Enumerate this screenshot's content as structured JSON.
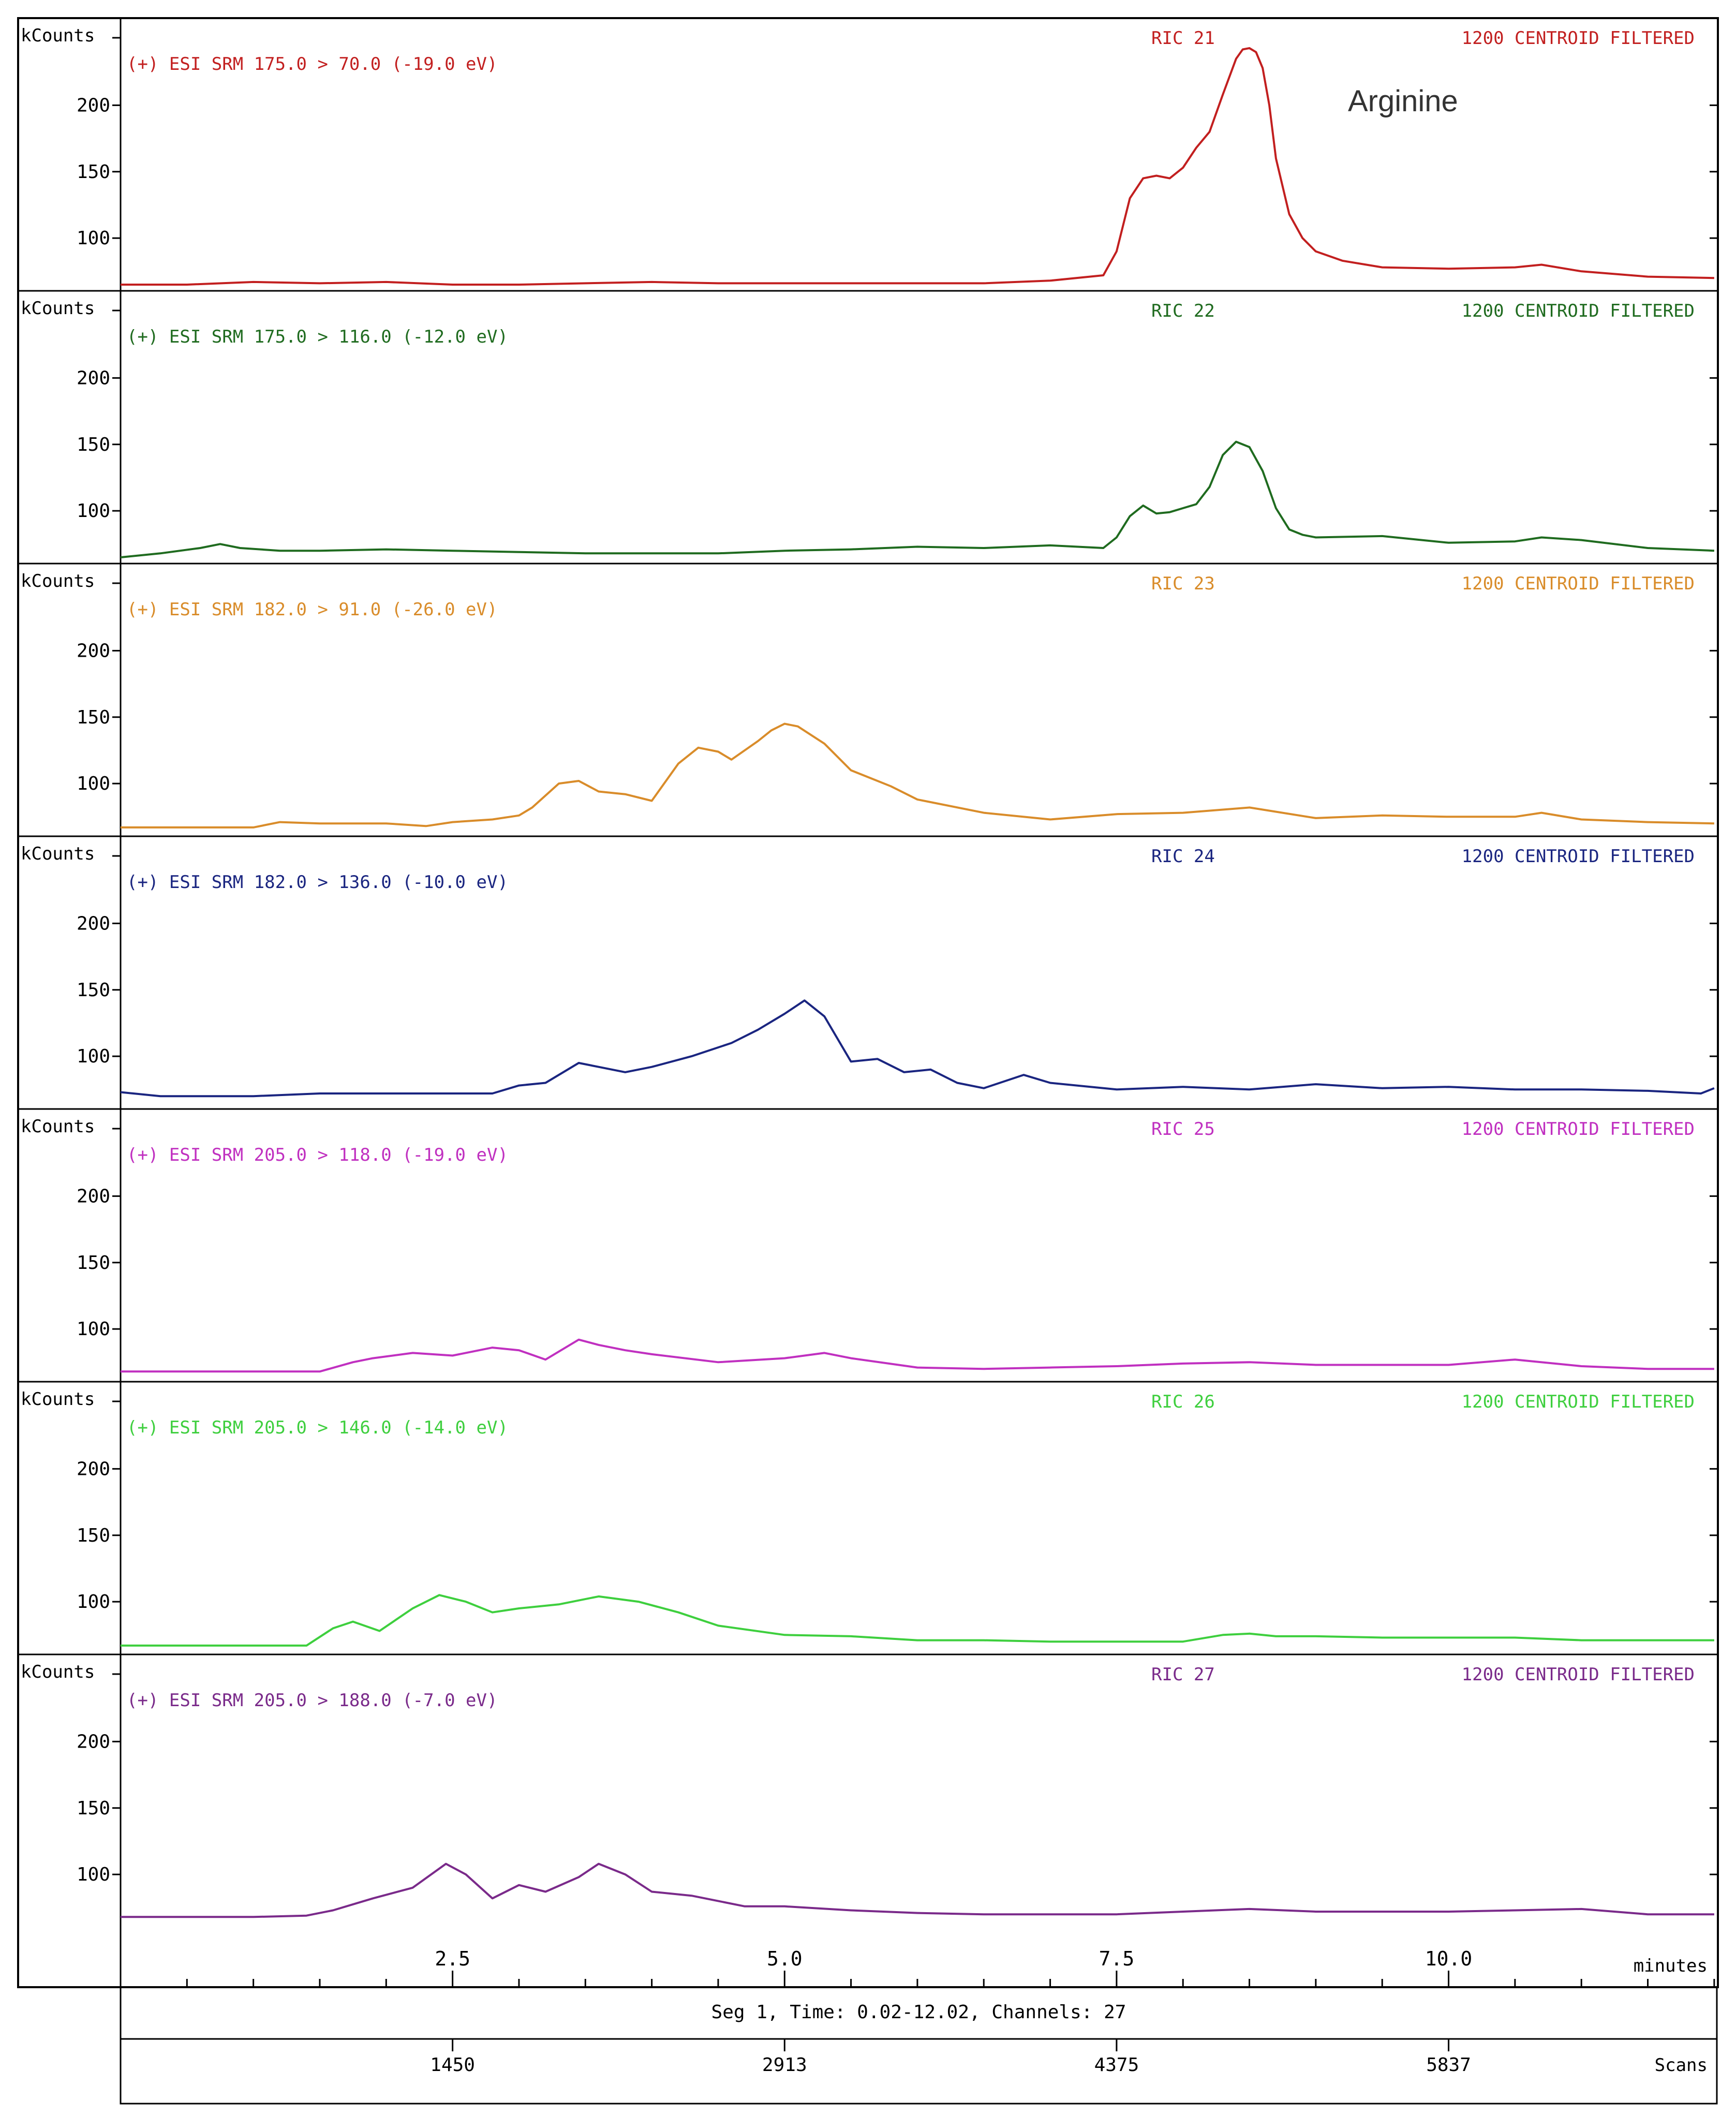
{
  "chart_data": [
    {
      "type": "line",
      "ylabel": "kCounts",
      "header_left": "(+) ESI SRM 175.0 > 70.0 (-19.0 eV)",
      "header_mid": "RIC 21",
      "header_right": "1200 CENTROID FILTERED",
      "annotation": "Arginine",
      "color": "#c21f1f",
      "ylim": [
        65,
        250
      ],
      "yticks": [
        100,
        150,
        200
      ],
      "x": [
        0.0,
        0.5,
        1.0,
        1.5,
        2.0,
        2.5,
        3.0,
        3.5,
        4.0,
        4.5,
        5.0,
        5.5,
        6.0,
        6.5,
        7.0,
        7.4,
        7.5,
        7.6,
        7.7,
        7.8,
        7.9,
        8.0,
        8.1,
        8.2,
        8.3,
        8.4,
        8.45,
        8.5,
        8.55,
        8.6,
        8.65,
        8.7,
        8.8,
        8.9,
        9.0,
        9.2,
        9.5,
        10.0,
        10.5,
        10.7,
        11.0,
        11.5,
        12.0
      ],
      "y": [
        65,
        65,
        67,
        66,
        67,
        65,
        65,
        66,
        67,
        66,
        66,
        66,
        66,
        66,
        68,
        72,
        90,
        130,
        145,
        147,
        145,
        153,
        168,
        180,
        208,
        235,
        242,
        243,
        240,
        228,
        200,
        160,
        118,
        100,
        90,
        83,
        78,
        77,
        78,
        80,
        75,
        71,
        70
      ],
      "xlim": [
        0,
        12.02
      ]
    },
    {
      "type": "line",
      "ylabel": "kCounts",
      "header_left": "(+) ESI SRM 175.0 > 116.0 (-12.0 eV)",
      "header_mid": "RIC 22",
      "header_right": "1200 CENTROID FILTERED",
      "color": "#1f6b1f",
      "ylim": [
        65,
        250
      ],
      "yticks": [
        100,
        150,
        200
      ],
      "x": [
        0.0,
        0.3,
        0.6,
        0.75,
        0.9,
        1.2,
        1.5,
        2.0,
        2.5,
        3.0,
        3.5,
        4.0,
        4.5,
        5.0,
        5.5,
        6.0,
        6.5,
        7.0,
        7.4,
        7.5,
        7.6,
        7.7,
        7.8,
        7.9,
        8.0,
        8.1,
        8.2,
        8.3,
        8.4,
        8.5,
        8.6,
        8.7,
        8.8,
        8.9,
        9.0,
        9.5,
        10.0,
        10.5,
        10.7,
        11.0,
        11.5,
        12.0
      ],
      "y": [
        65,
        68,
        72,
        75,
        72,
        70,
        70,
        71,
        70,
        69,
        68,
        68,
        68,
        70,
        71,
        73,
        72,
        74,
        72,
        80,
        96,
        104,
        98,
        99,
        102,
        105,
        118,
        142,
        152,
        148,
        130,
        102,
        86,
        82,
        80,
        81,
        76,
        77,
        80,
        78,
        72,
        70
      ],
      "xlim": [
        0,
        12.02
      ]
    },
    {
      "type": "line",
      "ylabel": "kCounts",
      "header_left": "(+) ESI SRM 182.0 > 91.0 (-26.0 eV)",
      "header_mid": "RIC 23",
      "header_right": "1200 CENTROID FILTERED",
      "color": "#d98c2a",
      "ylim": [
        65,
        250
      ],
      "yticks": [
        100,
        150,
        200
      ],
      "x": [
        0.0,
        0.5,
        1.0,
        1.2,
        1.5,
        2.0,
        2.3,
        2.5,
        2.8,
        3.0,
        3.1,
        3.3,
        3.45,
        3.6,
        3.8,
        4.0,
        4.2,
        4.35,
        4.5,
        4.6,
        4.8,
        4.9,
        5.0,
        5.1,
        5.3,
        5.5,
        5.8,
        6.0,
        6.5,
        7.0,
        7.5,
        8.0,
        8.5,
        9.0,
        9.5,
        10.0,
        10.5,
        10.7,
        11.0,
        11.5,
        12.0
      ],
      "y": [
        67,
        67,
        67,
        71,
        70,
        70,
        68,
        71,
        73,
        76,
        82,
        100,
        102,
        94,
        92,
        87,
        115,
        127,
        124,
        118,
        132,
        140,
        145,
        143,
        130,
        110,
        98,
        88,
        78,
        73,
        77,
        78,
        82,
        74,
        76,
        75,
        75,
        78,
        73,
        71,
        70
      ],
      "xlim": [
        0,
        12.02
      ]
    },
    {
      "type": "line",
      "ylabel": "kCounts",
      "header_left": "(+) ESI SRM 182.0 > 136.0 (-10.0 eV)",
      "header_mid": "RIC 24",
      "header_right": "1200 CENTROID FILTERED",
      "color": "#1a2580",
      "ylim": [
        65,
        250
      ],
      "yticks": [
        100,
        150,
        200
      ],
      "x": [
        0.0,
        0.3,
        0.5,
        1.0,
        1.5,
        2.0,
        2.5,
        2.8,
        3.0,
        3.2,
        3.45,
        3.6,
        3.8,
        4.0,
        4.3,
        4.6,
        4.8,
        5.0,
        5.15,
        5.3,
        5.5,
        5.7,
        5.9,
        6.1,
        6.3,
        6.5,
        6.8,
        7.0,
        7.5,
        8.0,
        8.5,
        9.0,
        9.5,
        10.0,
        10.5,
        11.0,
        11.5,
        11.9,
        12.0
      ],
      "y": [
        73,
        70,
        70,
        70,
        72,
        72,
        72,
        72,
        78,
        80,
        95,
        92,
        88,
        92,
        100,
        110,
        120,
        132,
        142,
        130,
        96,
        98,
        88,
        90,
        80,
        76,
        86,
        80,
        75,
        77,
        75,
        79,
        76,
        77,
        75,
        75,
        74,
        72,
        76
      ],
      "xlim": [
        0,
        12.02
      ]
    },
    {
      "type": "line",
      "ylabel": "kCounts",
      "header_left": "(+) ESI SRM 205.0 > 118.0 (-19.0 eV)",
      "header_mid": "RIC 25",
      "header_right": "1200 CENTROID FILTERED",
      "color": "#c030c0",
      "ylim": [
        65,
        250
      ],
      "yticks": [
        100,
        150,
        200
      ],
      "x": [
        0.0,
        0.5,
        1.0,
        1.5,
        1.75,
        1.9,
        2.2,
        2.5,
        2.8,
        3.0,
        3.2,
        3.45,
        3.6,
        3.8,
        4.0,
        4.5,
        5.0,
        5.3,
        5.5,
        6.0,
        6.5,
        7.0,
        7.5,
        8.0,
        8.5,
        9.0,
        9.5,
        10.0,
        10.5,
        11.0,
        11.5,
        12.0
      ],
      "y": [
        68,
        68,
        68,
        68,
        75,
        78,
        82,
        80,
        86,
        84,
        77,
        92,
        88,
        84,
        81,
        75,
        78,
        82,
        78,
        71,
        70,
        71,
        72,
        74,
        75,
        73,
        73,
        73,
        77,
        72,
        70,
        70
      ],
      "xlim": [
        0,
        12.02
      ]
    },
    {
      "type": "line",
      "ylabel": "kCounts",
      "header_left": "(+) ESI SRM 205.0 > 146.0 (-14.0 eV)",
      "header_mid": "RIC 26",
      "header_right": "1200 CENTROID FILTERED",
      "color": "#3ecf3e",
      "ylim": [
        65,
        250
      ],
      "yticks": [
        100,
        150,
        200
      ],
      "x": [
        0.0,
        0.5,
        1.0,
        1.4,
        1.6,
        1.75,
        1.95,
        2.2,
        2.4,
        2.6,
        2.8,
        3.0,
        3.3,
        3.6,
        3.9,
        4.2,
        4.5,
        5.0,
        5.5,
        6.0,
        6.5,
        7.0,
        7.5,
        8.0,
        8.3,
        8.5,
        8.7,
        9.0,
        9.5,
        10.0,
        10.5,
        11.0,
        11.5,
        12.0
      ],
      "y": [
        67,
        67,
        67,
        67,
        80,
        85,
        78,
        95,
        105,
        100,
        92,
        95,
        98,
        104,
        100,
        92,
        82,
        75,
        74,
        71,
        71,
        70,
        70,
        70,
        75,
        76,
        74,
        74,
        73,
        73,
        73,
        71,
        71,
        71
      ],
      "xlim": [
        0,
        12.02
      ]
    },
    {
      "type": "line",
      "ylabel": "kCounts",
      "header_left": "(+) ESI SRM 205.0 > 188.0 (-7.0 eV)",
      "header_mid": "RIC 27",
      "header_right": "1200 CENTROID FILTERED",
      "color": "#7a2a8a",
      "ylim": [
        65,
        250
      ],
      "yticks": [
        100,
        150,
        200
      ],
      "x": [
        0.0,
        0.5,
        1.0,
        1.4,
        1.6,
        1.9,
        2.2,
        2.45,
        2.6,
        2.8,
        3.0,
        3.2,
        3.45,
        3.6,
        3.8,
        4.0,
        4.3,
        4.7,
        5.0,
        5.5,
        6.0,
        6.5,
        7.0,
        7.5,
        8.0,
        8.5,
        9.0,
        9.5,
        10.0,
        10.5,
        11.0,
        11.5,
        12.0
      ],
      "y": [
        68,
        68,
        68,
        69,
        73,
        82,
        90,
        108,
        100,
        82,
        92,
        87,
        98,
        108,
        100,
        87,
        84,
        76,
        76,
        73,
        71,
        70,
        70,
        70,
        72,
        74,
        72,
        72,
        72,
        73,
        74,
        70,
        70
      ],
      "xlim": [
        0,
        12.02
      ]
    }
  ],
  "axis": {
    "xticks": [
      2.5,
      5.0,
      7.5,
      10.0
    ],
    "xtick_labels": [
      "2.5",
      "5.0",
      "7.5",
      "10.0"
    ],
    "unit_label": "minutes",
    "segment_text": "Seg 1, Time: 0.02-12.02, Channels: 27",
    "scan_ticks": [
      2.5,
      5.0,
      7.5,
      10.0
    ],
    "scan_labels": [
      "1450",
      "2913",
      "4375",
      "5837"
    ],
    "scan_unit_label": "Scans"
  },
  "colors": {
    "frame": "#000000",
    "background": "#ffffff"
  }
}
